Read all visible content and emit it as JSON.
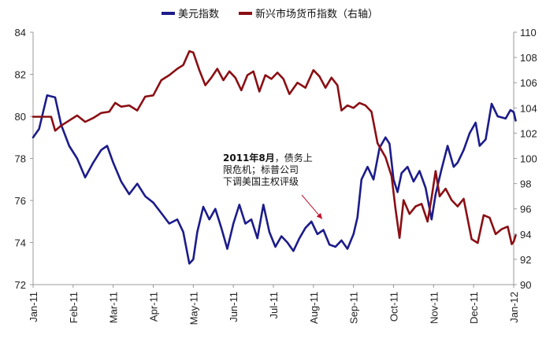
{
  "chart_data": {
    "type": "line",
    "title": "",
    "xlabel": "",
    "ylabel": "",
    "legend_position": "top",
    "grid": false,
    "x_ticks": [
      "Jan-11",
      "Feb-11",
      "Mar-11",
      "Apr-11",
      "May-11",
      "Jun-11",
      "Jul-11",
      "Aug-11",
      "Sep-11",
      "Oct-11",
      "Nov-11",
      "Dec-11",
      "Jan-12"
    ],
    "ylim_left": [
      72,
      84
    ],
    "yticks_left": [
      "72",
      "74",
      "76",
      "78",
      "80",
      "82",
      "84"
    ],
    "ylim_right": [
      90,
      110
    ],
    "yticks_right": [
      "90",
      "92",
      "94",
      "96",
      "98",
      "100",
      "102",
      "104",
      "106",
      "108",
      "110"
    ],
    "series": [
      {
        "name": "美元指数",
        "axis": "left",
        "color": "#1c1c8a",
        "points": [
          [
            0.0,
            79.0
          ],
          [
            0.15,
            79.4
          ],
          [
            0.35,
            81.0
          ],
          [
            0.55,
            80.9
          ],
          [
            0.7,
            79.6
          ],
          [
            0.9,
            78.6
          ],
          [
            1.1,
            78.0
          ],
          [
            1.3,
            77.1
          ],
          [
            1.5,
            77.8
          ],
          [
            1.7,
            78.4
          ],
          [
            1.85,
            78.6
          ],
          [
            2.0,
            77.8
          ],
          [
            2.2,
            76.9
          ],
          [
            2.4,
            76.3
          ],
          [
            2.6,
            76.8
          ],
          [
            2.8,
            76.2
          ],
          [
            3.0,
            75.9
          ],
          [
            3.2,
            75.4
          ],
          [
            3.4,
            74.9
          ],
          [
            3.6,
            75.1
          ],
          [
            3.75,
            74.5
          ],
          [
            3.9,
            73.0
          ],
          [
            4.0,
            73.2
          ],
          [
            4.1,
            74.5
          ],
          [
            4.25,
            75.7
          ],
          [
            4.4,
            75.1
          ],
          [
            4.55,
            75.6
          ],
          [
            4.7,
            74.7
          ],
          [
            4.85,
            73.7
          ],
          [
            5.0,
            74.9
          ],
          [
            5.15,
            75.8
          ],
          [
            5.3,
            74.9
          ],
          [
            5.45,
            75.1
          ],
          [
            5.6,
            74.2
          ],
          [
            5.75,
            75.8
          ],
          [
            5.9,
            74.5
          ],
          [
            6.05,
            73.8
          ],
          [
            6.2,
            74.3
          ],
          [
            6.35,
            74.0
          ],
          [
            6.5,
            73.6
          ],
          [
            6.65,
            74.2
          ],
          [
            6.8,
            74.7
          ],
          [
            6.95,
            75.0
          ],
          [
            7.1,
            74.4
          ],
          [
            7.25,
            74.6
          ],
          [
            7.4,
            73.9
          ],
          [
            7.55,
            73.8
          ],
          [
            7.7,
            74.1
          ],
          [
            7.85,
            73.7
          ],
          [
            8.0,
            74.4
          ],
          [
            8.1,
            75.2
          ],
          [
            8.2,
            77.0
          ],
          [
            8.35,
            77.6
          ],
          [
            8.5,
            77.0
          ],
          [
            8.65,
            78.5
          ],
          [
            8.8,
            79.0
          ],
          [
            8.9,
            78.7
          ],
          [
            9.0,
            77.0
          ],
          [
            9.1,
            76.4
          ],
          [
            9.2,
            77.3
          ],
          [
            9.35,
            77.6
          ],
          [
            9.5,
            76.9
          ],
          [
            9.65,
            77.4
          ],
          [
            9.8,
            76.6
          ],
          [
            9.95,
            75.1
          ],
          [
            10.05,
            76.3
          ],
          [
            10.2,
            77.5
          ],
          [
            10.35,
            78.6
          ],
          [
            10.5,
            77.6
          ],
          [
            10.6,
            77.8
          ],
          [
            10.75,
            78.4
          ],
          [
            10.9,
            79.2
          ],
          [
            11.05,
            79.7
          ],
          [
            11.15,
            78.6
          ],
          [
            11.3,
            78.9
          ],
          [
            11.45,
            80.6
          ],
          [
            11.6,
            80.0
          ],
          [
            11.8,
            79.9
          ],
          [
            11.92,
            80.3
          ],
          [
            12.0,
            80.2
          ],
          [
            12.05,
            79.8
          ]
        ]
      },
      {
        "name": "新兴市场货币指数（右轴）",
        "axis": "right",
        "color": "#8a0f14",
        "points": [
          [
            0.0,
            103.3
          ],
          [
            0.35,
            103.3
          ],
          [
            0.45,
            103.3
          ],
          [
            0.55,
            102.2
          ],
          [
            0.7,
            102.6
          ],
          [
            0.9,
            103.0
          ],
          [
            1.1,
            103.4
          ],
          [
            1.3,
            102.9
          ],
          [
            1.5,
            103.2
          ],
          [
            1.7,
            103.6
          ],
          [
            1.9,
            103.7
          ],
          [
            2.05,
            104.4
          ],
          [
            2.2,
            104.1
          ],
          [
            2.4,
            104.2
          ],
          [
            2.6,
            103.8
          ],
          [
            2.8,
            104.9
          ],
          [
            3.0,
            105.0
          ],
          [
            3.2,
            106.2
          ],
          [
            3.4,
            106.6
          ],
          [
            3.6,
            107.1
          ],
          [
            3.75,
            107.4
          ],
          [
            3.9,
            108.5
          ],
          [
            4.0,
            108.4
          ],
          [
            4.15,
            107.0
          ],
          [
            4.3,
            105.8
          ],
          [
            4.45,
            106.4
          ],
          [
            4.6,
            107.1
          ],
          [
            4.75,
            106.2
          ],
          [
            4.9,
            106.9
          ],
          [
            5.05,
            106.4
          ],
          [
            5.2,
            105.4
          ],
          [
            5.35,
            106.6
          ],
          [
            5.5,
            106.9
          ],
          [
            5.65,
            105.3
          ],
          [
            5.8,
            106.6
          ],
          [
            5.95,
            106.3
          ],
          [
            6.1,
            106.8
          ],
          [
            6.25,
            106.3
          ],
          [
            6.4,
            105.1
          ],
          [
            6.6,
            106.0
          ],
          [
            6.8,
            105.6
          ],
          [
            7.0,
            107.0
          ],
          [
            7.15,
            106.5
          ],
          [
            7.3,
            105.6
          ],
          [
            7.45,
            106.4
          ],
          [
            7.6,
            105.8
          ],
          [
            7.7,
            103.8
          ],
          [
            7.85,
            104.2
          ],
          [
            8.0,
            104.0
          ],
          [
            8.15,
            104.4
          ],
          [
            8.3,
            104.2
          ],
          [
            8.45,
            103.7
          ],
          [
            8.6,
            101.2
          ],
          [
            8.8,
            100.1
          ],
          [
            8.95,
            98.6
          ],
          [
            9.05,
            96.0
          ],
          [
            9.15,
            93.7
          ],
          [
            9.25,
            96.7
          ],
          [
            9.4,
            95.6
          ],
          [
            9.55,
            96.2
          ],
          [
            9.7,
            96.4
          ],
          [
            9.85,
            95.0
          ],
          [
            9.95,
            96.9
          ],
          [
            10.05,
            99.0
          ],
          [
            10.15,
            97.0
          ],
          [
            10.3,
            97.6
          ],
          [
            10.45,
            96.7
          ],
          [
            10.6,
            96.2
          ],
          [
            10.75,
            96.8
          ],
          [
            10.95,
            93.6
          ],
          [
            11.1,
            93.3
          ],
          [
            11.25,
            95.5
          ],
          [
            11.4,
            95.3
          ],
          [
            11.55,
            94.0
          ],
          [
            11.7,
            94.4
          ],
          [
            11.85,
            94.6
          ],
          [
            11.95,
            93.2
          ],
          [
            12.0,
            93.4
          ],
          [
            12.05,
            93.9
          ]
        ]
      }
    ],
    "annotation": {
      "lines": [
        "2011年8月，债务上",
        "限危机；标普公司",
        "下调美国主权评级"
      ],
      "bold_part": "2011年8月",
      "arrow_to": [
        7.1,
        74.6
      ]
    }
  }
}
